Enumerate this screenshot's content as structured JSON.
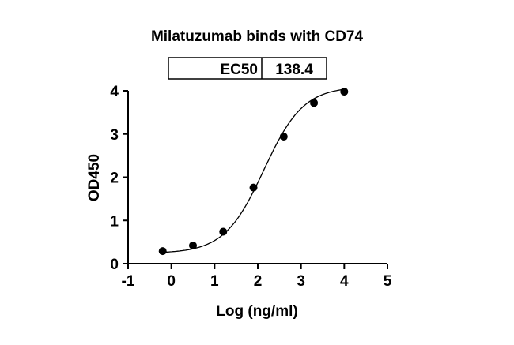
{
  "chart_data": {
    "type": "scatter",
    "title": "Milatuzumab binds with CD74",
    "xlabel": "Log (ng/ml)",
    "ylabel": "OD450",
    "xlim": [
      -1,
      5
    ],
    "ylim": [
      0,
      4
    ],
    "xticks": [
      "-1",
      "0",
      "1",
      "2",
      "3",
      "4",
      "5"
    ],
    "yticks": [
      "0",
      "1",
      "2",
      "3",
      "4"
    ],
    "grid": false,
    "fit": "sigmoidal dose-response curve",
    "ec50_table": {
      "label": "EC50",
      "value": "138.4"
    },
    "x": [
      -0.2,
      0.5,
      1.2,
      1.9,
      2.6,
      3.3,
      4.0
    ],
    "y": [
      0.29,
      0.42,
      0.74,
      1.76,
      2.94,
      3.72,
      3.98
    ],
    "colors": {
      "points": "#000000",
      "curve": "#000000"
    }
  }
}
